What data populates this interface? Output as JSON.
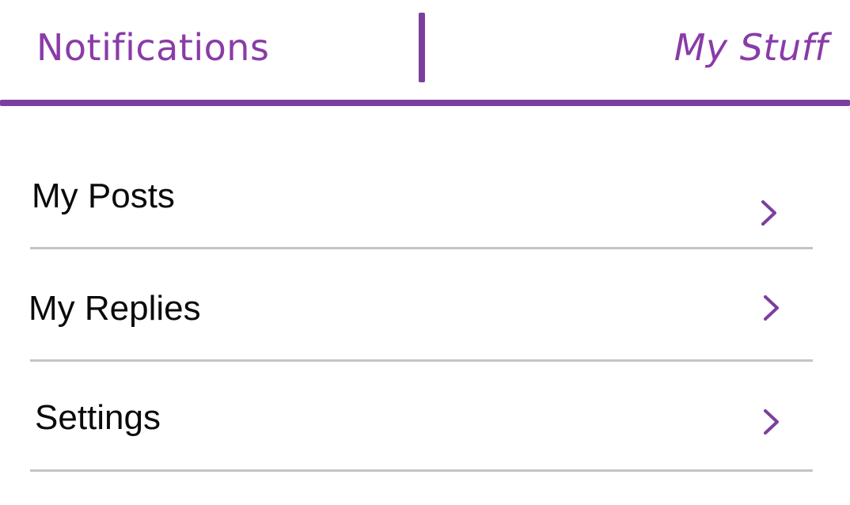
{
  "colors": {
    "accent": "#7b3f9e",
    "tab_text": "#8a3ba8",
    "menu_text": "#0a0a0a",
    "separator": "#c4c4c4",
    "background": "#ffffff"
  },
  "tabs": {
    "left": {
      "label": "Notifications",
      "selected": false
    },
    "right": {
      "label": "My Stuff",
      "selected": true
    }
  },
  "menu": {
    "items": [
      {
        "label": "My Posts",
        "icon": "chevron-right-icon"
      },
      {
        "label": "My Replies",
        "icon": "chevron-right-icon"
      },
      {
        "label": "Settings",
        "icon": "chevron-right-icon"
      }
    ]
  }
}
